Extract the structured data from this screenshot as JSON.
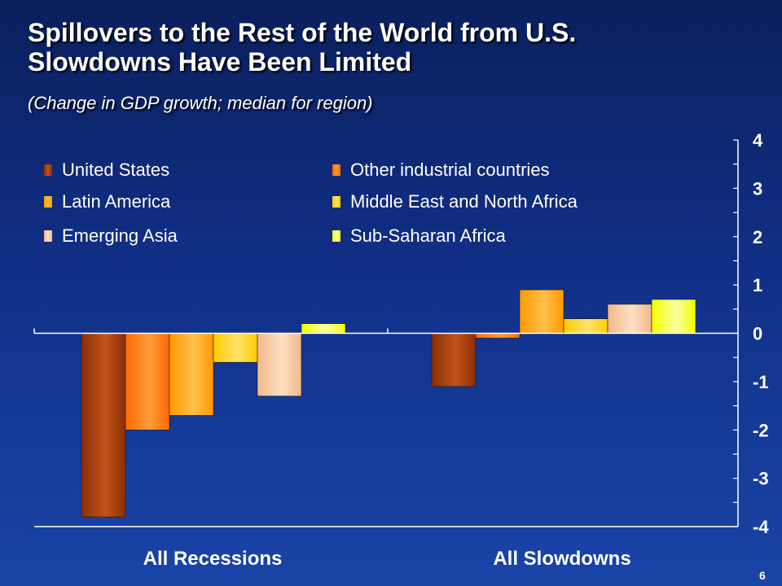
{
  "slide": {
    "title_line1": "Spillovers to the Rest of the World from U.S.",
    "title_line2": "Slowdowns Have Been Limited",
    "subtitle": "(Change in GDP growth; median for region)",
    "page_number": "6"
  },
  "chart_data": {
    "type": "bar",
    "title": "",
    "xlabel": "",
    "ylabel": "",
    "categories": [
      "All Recessions",
      "All Slowdowns"
    ],
    "ylim": [
      -4,
      4
    ],
    "y_ticks": [
      "4",
      "3",
      "2",
      "1",
      "0",
      "-1",
      "-2",
      "-3",
      "-4"
    ],
    "y_axis_position": "right",
    "grid": false,
    "legend_position": "top-left",
    "series": [
      {
        "name": "United States",
        "values": [
          -3.8,
          -1.1
        ],
        "color": "#8b2e05",
        "color_light": "#c2531a"
      },
      {
        "name": "Other industrial countries",
        "values": [
          -2.0,
          -0.1
        ],
        "color": "#ff6a00",
        "color_light": "#ff9a3c"
      },
      {
        "name": "Latin America",
        "values": [
          -1.7,
          0.9
        ],
        "color": "#ff9900",
        "color_light": "#ffc04a"
      },
      {
        "name": "Middle East and North Africa",
        "values": [
          -0.6,
          0.3
        ],
        "color": "#ffcc00",
        "color_light": "#ffe36b"
      },
      {
        "name": "Emerging Asia",
        "values": [
          -1.3,
          0.6
        ],
        "color": "#f0b88a",
        "color_light": "#ffe0c4"
      },
      {
        "name": "Sub-Saharan Africa",
        "values": [
          0.2,
          0.7
        ],
        "color": "#f2ff00",
        "color_light": "#fbffa0"
      }
    ]
  }
}
